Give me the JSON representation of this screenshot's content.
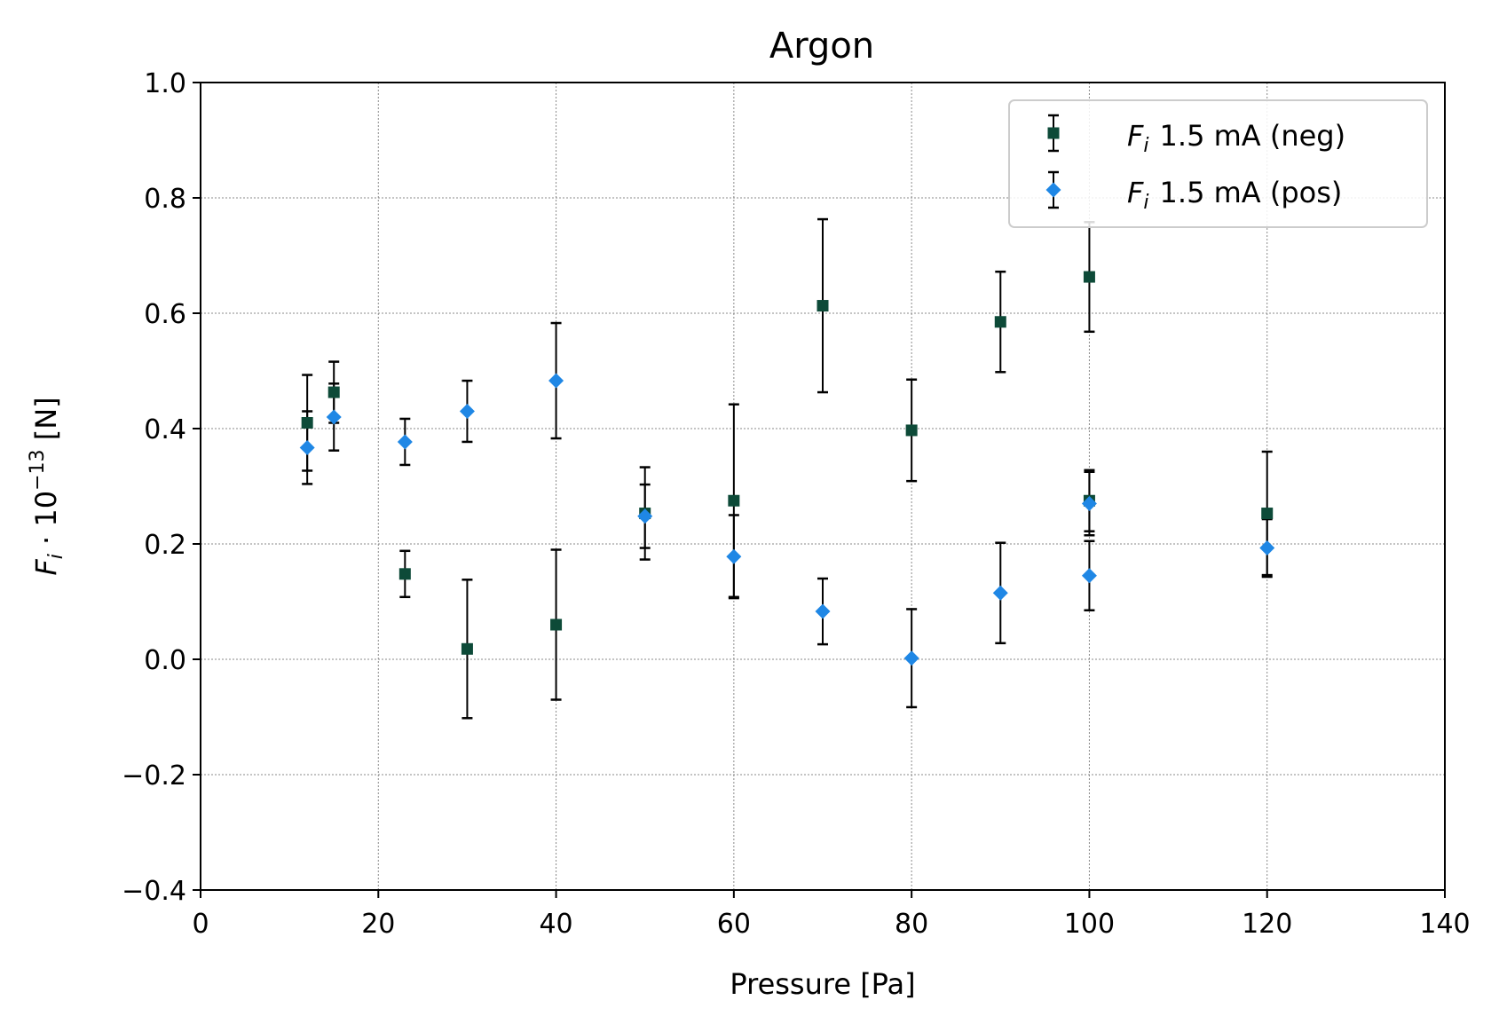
{
  "chart_data": {
    "type": "scatter",
    "title": "Argon",
    "xlabel": "Pressure [Pa]",
    "ylabel": {
      "symbol": "F",
      "subscript": "i",
      "middle": " · 10",
      "exponent": "−13",
      "unit": " [N]"
    },
    "xlim": [
      0,
      140
    ],
    "ylim": [
      -0.4,
      1.0
    ],
    "xticks": [
      0,
      20,
      40,
      60,
      80,
      100,
      120,
      140
    ],
    "xtick_labels": [
      "0",
      "20",
      "40",
      "60",
      "80",
      "100",
      "120",
      "140"
    ],
    "yticks": [
      -0.4,
      -0.2,
      0.0,
      0.2,
      0.4,
      0.6,
      0.8,
      1.0
    ],
    "ytick_labels": [
      "−0.4",
      "−0.2",
      "0.0",
      "0.2",
      "0.4",
      "0.6",
      "0.8",
      "1.0"
    ],
    "grid": true,
    "legend_position": "top-right",
    "series": [
      {
        "name": "1.5 mA (neg)",
        "name_symbol": "F",
        "name_subscript": "i",
        "marker": "square",
        "color": "#0d4a38",
        "points": [
          {
            "x": 12,
            "y": 0.41,
            "err": 0.083
          },
          {
            "x": 15,
            "y": 0.463,
            "err": 0.053
          },
          {
            "x": 23,
            "y": 0.148,
            "err": 0.04
          },
          {
            "x": 30,
            "y": 0.018,
            "err": 0.12
          },
          {
            "x": 40,
            "y": 0.06,
            "err": 0.13
          },
          {
            "x": 50,
            "y": 0.253,
            "err": 0.08
          },
          {
            "x": 60,
            "y": 0.275,
            "err": 0.167
          },
          {
            "x": 70,
            "y": 0.613,
            "err": 0.15
          },
          {
            "x": 80,
            "y": 0.397,
            "err": 0.088
          },
          {
            "x": 90,
            "y": 0.585,
            "err": 0.087
          },
          {
            "x": 100,
            "y": 0.663,
            "err": 0.095
          },
          {
            "x": 100,
            "y": 0.275,
            "err": 0.053
          },
          {
            "x": 120,
            "y": 0.253,
            "err": 0.107
          }
        ]
      },
      {
        "name": "1.5 mA (pos)",
        "name_symbol": "F",
        "name_subscript": "i",
        "marker": "diamond",
        "color": "#1f87e5",
        "points": [
          {
            "x": 12,
            "y": 0.367,
            "err": 0.063
          },
          {
            "x": 15,
            "y": 0.42,
            "err": 0.058
          },
          {
            "x": 23,
            "y": 0.377,
            "err": 0.04
          },
          {
            "x": 30,
            "y": 0.43,
            "err": 0.053
          },
          {
            "x": 40,
            "y": 0.483,
            "err": 0.1
          },
          {
            "x": 50,
            "y": 0.248,
            "err": 0.055
          },
          {
            "x": 60,
            "y": 0.178,
            "err": 0.072
          },
          {
            "x": 70,
            "y": 0.083,
            "err": 0.057
          },
          {
            "x": 80,
            "y": 0.002,
            "err": 0.085
          },
          {
            "x": 90,
            "y": 0.115,
            "err": 0.087
          },
          {
            "x": 100,
            "y": 0.145,
            "err": 0.06
          },
          {
            "x": 100,
            "y": 0.27,
            "err": 0.055
          },
          {
            "x": 120,
            "y": 0.193,
            "err": 0.05
          }
        ]
      }
    ]
  }
}
